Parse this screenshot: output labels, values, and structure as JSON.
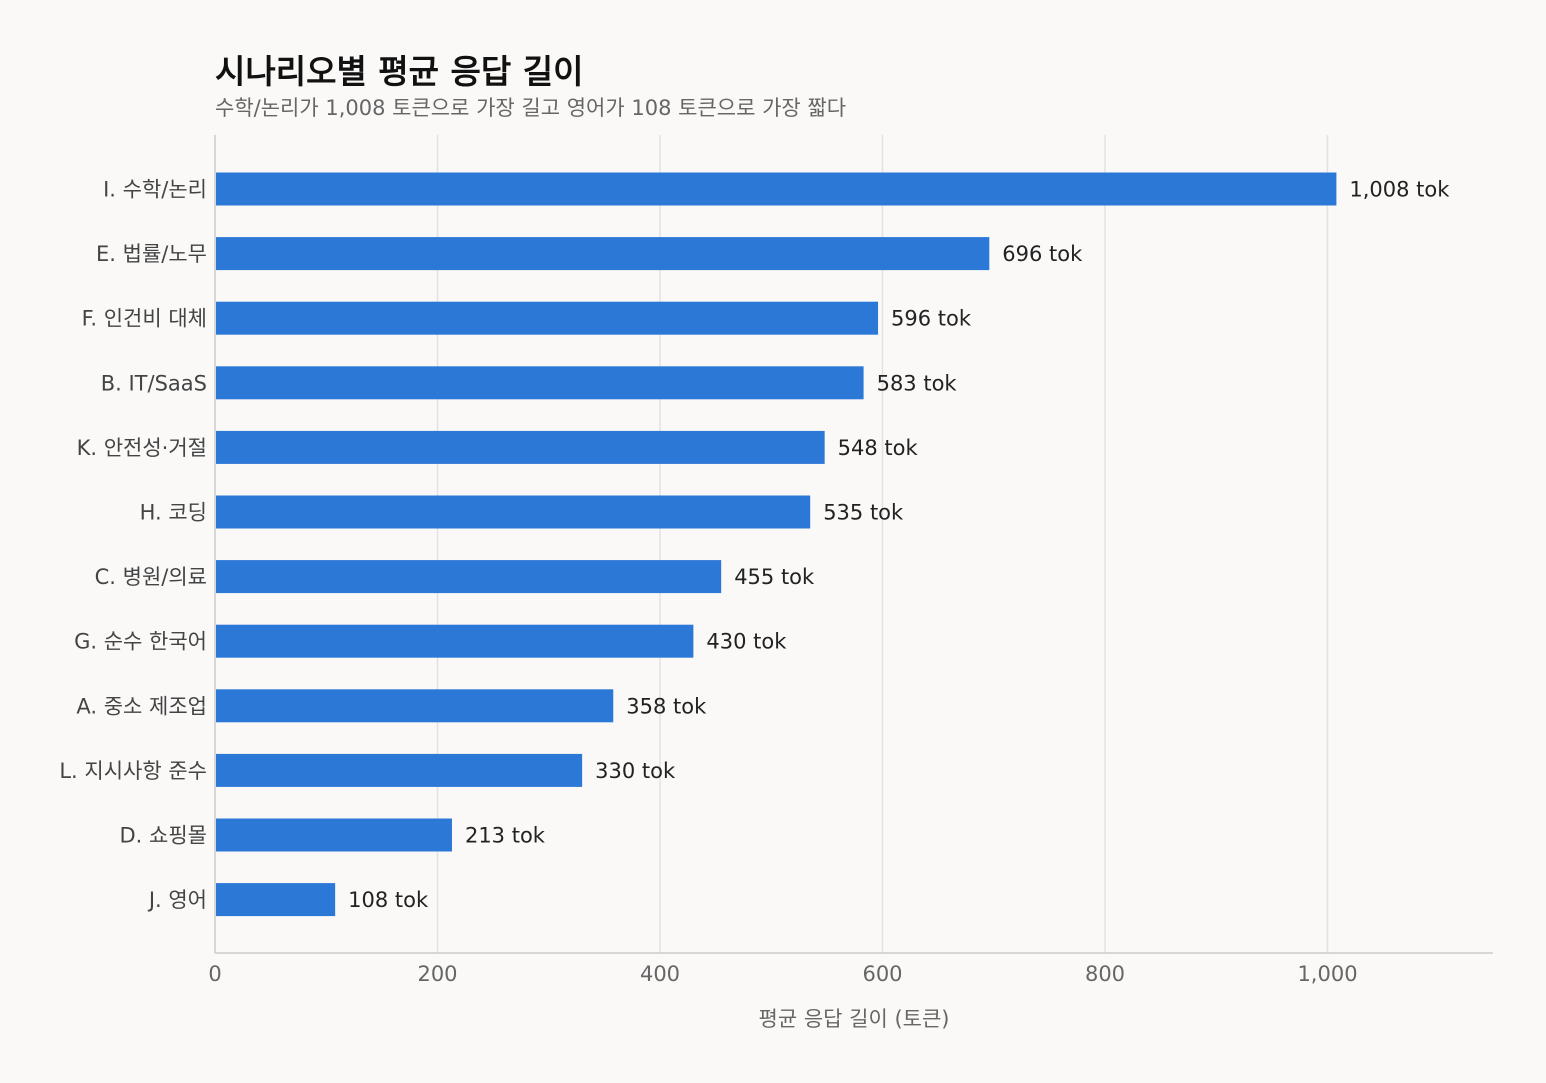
{
  "chart_data": {
    "type": "bar",
    "orientation": "horizontal",
    "title": "시나리오별 평균 응답 길이",
    "subtitle": "수학/논리가 1,008 토큰으로 가장 길고 영어가 108 토큰으로 가장 짧다",
    "xlabel": "평균 응답 길이 (토큰)",
    "ylabel": "",
    "xlim": [
      0,
      1150
    ],
    "xticks": [
      0,
      200,
      400,
      600,
      800,
      1000
    ],
    "xtick_labels": [
      "0",
      "200",
      "400",
      "600",
      "800",
      "1,000"
    ],
    "grid": "vertical",
    "legend": "none",
    "bar_color": "#2b78d6",
    "categories": [
      "I. 수학/논리",
      "E. 법률/노무",
      "F. 인건비 대체",
      "B. IT/SaaS",
      "K. 안전성·거절",
      "H. 코딩",
      "C. 병원/의료",
      "G. 순수 한국어",
      "A. 중소 제조업",
      "L. 지시사항 준수",
      "D. 쇼핑몰",
      "J. 영어"
    ],
    "values": [
      1008,
      696,
      596,
      583,
      548,
      535,
      455,
      430,
      358,
      330,
      213,
      108
    ],
    "value_labels": [
      "1,008 tok",
      "696 tok",
      "596 tok",
      "583 tok",
      "548 tok",
      "535 tok",
      "455 tok",
      "430 tok",
      "358 tok",
      "330 tok",
      "213 tok",
      "108 tok"
    ]
  }
}
